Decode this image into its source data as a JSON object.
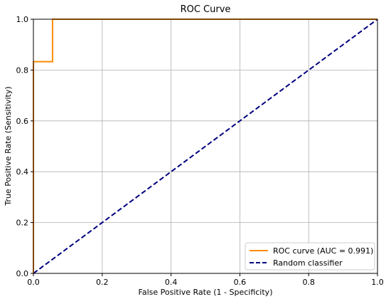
{
  "chart_data": {
    "type": "line",
    "title": "ROC Curve",
    "xlabel": "False Positive Rate (1 - Specificity)",
    "ylabel": "True Positive Rate (Sensitivity)",
    "xlim": [
      0.0,
      1.0
    ],
    "ylim": [
      0.0,
      1.0
    ],
    "grid": true,
    "legend_position": "lower-right",
    "x_ticks": [
      "0.0",
      "0.2",
      "0.4",
      "0.6",
      "0.8",
      "1.0"
    ],
    "y_ticks": [
      "0.0",
      "0.2",
      "0.4",
      "0.6",
      "0.8",
      "1.0"
    ],
    "series": [
      {
        "name": "ROC curve (AUC = 0.991)",
        "color": "#ff8c00",
        "style": "solid",
        "x": [
          0.0,
          0.0,
          0.0,
          0.0556,
          0.0556,
          1.0
        ],
        "y": [
          0.0,
          0.0,
          0.833,
          0.833,
          1.0,
          1.0
        ]
      },
      {
        "name": "Random classifier",
        "color": "#000080",
        "style": "dashed",
        "x": [
          0.0,
          1.0
        ],
        "y": [
          0.0,
          1.0
        ]
      }
    ]
  }
}
